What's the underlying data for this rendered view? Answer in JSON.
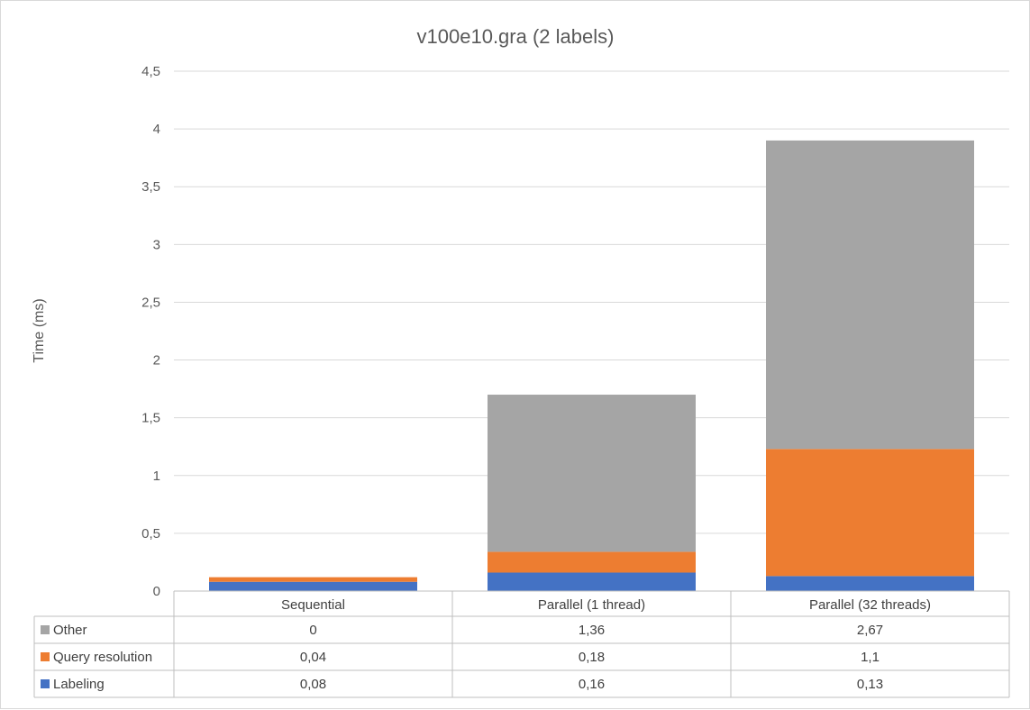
{
  "chart_data": {
    "type": "bar",
    "stacked": true,
    "title": "v100e10.gra (2 labels)",
    "xlabel": "",
    "ylabel": "Time (ms)",
    "ylim": [
      0,
      4.5
    ],
    "yticks": [
      0,
      0.5,
      1,
      1.5,
      2,
      2.5,
      3,
      3.5,
      4,
      4.5
    ],
    "ytick_labels": [
      "0",
      "0,5",
      "1",
      "1,5",
      "2",
      "2,5",
      "3",
      "3,5",
      "4",
      "4,5"
    ],
    "grid": true,
    "legend": "data-table",
    "categories": [
      "Sequential",
      "Parallel (1 thread)",
      "Parallel (32 threads)"
    ],
    "series": [
      {
        "name": "Other",
        "color": "#a5a5a5",
        "values": [
          0,
          1.36,
          2.67
        ],
        "labels": [
          "0",
          "1,36",
          "2,67"
        ]
      },
      {
        "name": "Query resolution",
        "color": "#ed7d31",
        "values": [
          0.04,
          0.18,
          1.1
        ],
        "labels": [
          "0,04",
          "0,18",
          "1,1"
        ]
      },
      {
        "name": "Labeling",
        "color": "#4472c4",
        "values": [
          0.08,
          0.16,
          0.13
        ],
        "labels": [
          "0,08",
          "0,16",
          "0,13"
        ]
      }
    ]
  }
}
